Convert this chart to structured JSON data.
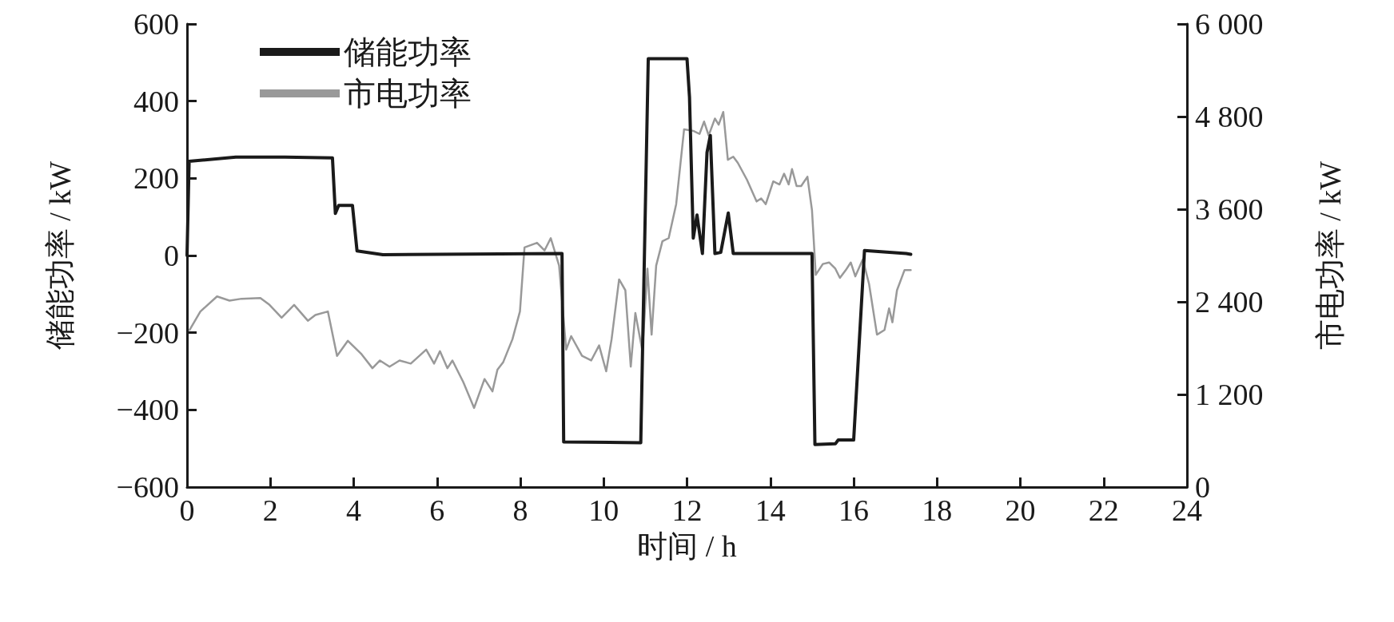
{
  "chart_data": {
    "type": "line",
    "xlabel": "时间 / h",
    "ylabel": "储能功率 / kW",
    "y2label": "市电功率 / kW",
    "xlim": [
      0,
      24
    ],
    "xticks": [
      0,
      2,
      4,
      6,
      8,
      10,
      12,
      14,
      16,
      18,
      20,
      22,
      24
    ],
    "ylim": [
      -600,
      600
    ],
    "yticks": [
      {
        "value": -600,
        "label": "−600"
      },
      {
        "value": -400,
        "label": "−400"
      },
      {
        "value": -200,
        "label": "−200"
      },
      0,
      200,
      400,
      600
    ],
    "y2lim": [
      0,
      6000
    ],
    "y2ticks": [
      0,
      {
        "value": 1200,
        "label": "1 200"
      },
      {
        "value": 2400,
        "label": "2 400"
      },
      {
        "value": 3600,
        "label": "3 600"
      },
      {
        "value": 4800,
        "label": "4 800"
      },
      {
        "value": 6000,
        "label": "6 000"
      }
    ],
    "grid": false,
    "legend": "top left",
    "marker": "none",
    "line_style": "solid",
    "series": [
      {
        "name": "储能功率",
        "color": "#1a1a1a",
        "x": [
          0,
          0.05,
          1.17,
          2.35,
          3.49,
          3.56,
          3.64,
          3.97,
          4.08,
          4.7,
          9.0,
          9.04,
          10.89,
          11.07,
          12.0,
          12.06,
          12.15,
          12.24,
          12.37,
          12.48,
          12.56,
          12.67,
          12.81,
          12.99,
          13.11,
          15.0,
          15.07,
          15.56,
          15.63,
          16.0,
          16.26,
          17.26,
          17.37
        ],
        "values": [
          0,
          244,
          255,
          255,
          253,
          109,
          130,
          130,
          12,
          2,
          5,
          -483,
          -485,
          510,
          510,
          410,
          45,
          105,
          5,
          267,
          311,
          5,
          8,
          110,
          5,
          5,
          -490,
          -488,
          -478,
          -478,
          13,
          5,
          3
        ]
      },
      {
        "name": "市电功率",
        "color": "#999999",
        "axis": "y2",
        "x": [
          0.06,
          0.32,
          0.72,
          1.02,
          1.31,
          1.76,
          1.98,
          2.27,
          2.57,
          2.9,
          3.08,
          3.38,
          3.6,
          3.86,
          4.19,
          4.45,
          4.63,
          4.86,
          5.1,
          5.37,
          5.74,
          5.93,
          6.07,
          6.25,
          6.37,
          6.63,
          6.89,
          7.14,
          7.33,
          7.45,
          7.59,
          7.81,
          7.99,
          8.1,
          8.4,
          8.58,
          8.73,
          8.93,
          9.1,
          9.22,
          9.48,
          9.7,
          9.89,
          10.06,
          10.19,
          10.37,
          10.52,
          10.65,
          10.76,
          10.93,
          11.05,
          11.15,
          11.26,
          11.41,
          11.56,
          11.74,
          11.93,
          12.15,
          12.3,
          12.41,
          12.52,
          12.67,
          12.76,
          12.87,
          12.98,
          13.11,
          13.22,
          13.44,
          13.67,
          13.78,
          13.89,
          14.07,
          14.22,
          14.33,
          14.44,
          14.52,
          14.63,
          14.74,
          14.89,
          15.0,
          15.09,
          15.26,
          15.41,
          15.56,
          15.67,
          15.81,
          15.93,
          16.04,
          16.22,
          16.37,
          16.56,
          16.74,
          16.85,
          16.93,
          17.04,
          17.22,
          17.37
        ],
        "values": [
          2035,
          2275,
          2470,
          2415,
          2440,
          2450,
          2360,
          2195,
          2360,
          2155,
          2230,
          2275,
          1700,
          1895,
          1720,
          1540,
          1640,
          1560,
          1640,
          1600,
          1780,
          1600,
          1760,
          1540,
          1640,
          1360,
          1025,
          1400,
          1240,
          1520,
          1620,
          1915,
          2275,
          3105,
          3165,
          3065,
          3225,
          2870,
          1780,
          1955,
          1700,
          1640,
          1835,
          1500,
          1915,
          2690,
          2550,
          1560,
          2255,
          1760,
          2830,
          1975,
          2870,
          3185,
          3225,
          3665,
          4635,
          4615,
          4575,
          4735,
          4555,
          4775,
          4695,
          4860,
          4240,
          4280,
          4200,
          3980,
          3700,
          3740,
          3665,
          3960,
          3920,
          4060,
          3920,
          4120,
          3900,
          3900,
          4020,
          3585,
          2750,
          2890,
          2910,
          2830,
          2710,
          2810,
          2910,
          2730,
          2950,
          2630,
          1975,
          2035,
          2315,
          2135,
          2550,
          2810,
          2810
        ]
      }
    ]
  }
}
